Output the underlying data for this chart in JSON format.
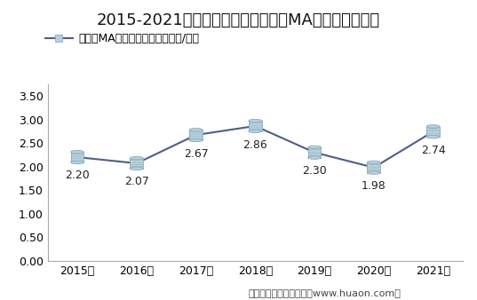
{
  "title": "2015-2021年郑州商品交易所甲醇（MA）期货成交均价",
  "legend_label": "甲醇（MA）期货成交均价（万元/手）",
  "years": [
    "2015年",
    "2016年",
    "2017年",
    "2018年",
    "2019年",
    "2020年",
    "2021年"
  ],
  "values": [
    2.2,
    2.07,
    2.67,
    2.86,
    2.3,
    1.98,
    2.74
  ],
  "ylim": [
    0.0,
    3.75
  ],
  "yticks": [
    0.0,
    0.5,
    1.0,
    1.5,
    2.0,
    2.5,
    3.0,
    3.5
  ],
  "line_color": "#4F5D8A",
  "marker_fill_color": "#B8D0DC",
  "marker_edge_color": "#8AAABB",
  "marker_stripe_color": "#9ABBC8",
  "bg_color": "#FFFFFF",
  "plot_bg_color": "#FFFFFF",
  "footer_text": "制图：华经产业研究院（www.huaon.com）",
  "title_fontsize": 13,
  "legend_fontsize": 9,
  "tick_fontsize": 9,
  "footer_fontsize": 8,
  "data_label_fontsize": 9
}
